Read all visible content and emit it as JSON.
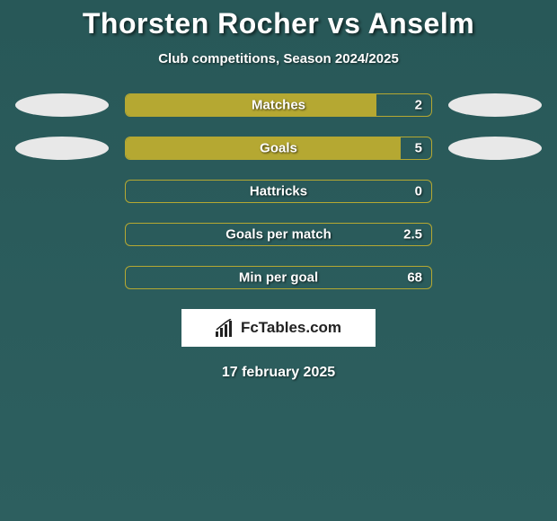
{
  "title": "Thorsten Rocher vs Anselm",
  "subtitle": "Club competitions, Season 2024/2025",
  "date": "17 february 2025",
  "brand": {
    "text": "FcTables.com"
  },
  "colors": {
    "background": "#2a5a5a",
    "bar_fill": "#b5a832",
    "bar_border": "#b5a832",
    "dot": "#e8e8e8",
    "text": "#ffffff",
    "brand_bg": "#ffffff",
    "brand_text": "#222222"
  },
  "stats": [
    {
      "label": "Matches",
      "value": "2",
      "fill_pct": 82,
      "show_dots": true
    },
    {
      "label": "Goals",
      "value": "5",
      "fill_pct": 90,
      "show_dots": true
    },
    {
      "label": "Hattricks",
      "value": "0",
      "fill_pct": 0,
      "show_dots": false
    },
    {
      "label": "Goals per match",
      "value": "2.5",
      "fill_pct": 0,
      "show_dots": false
    },
    {
      "label": "Min per goal",
      "value": "68",
      "fill_pct": 0,
      "show_dots": false
    }
  ]
}
